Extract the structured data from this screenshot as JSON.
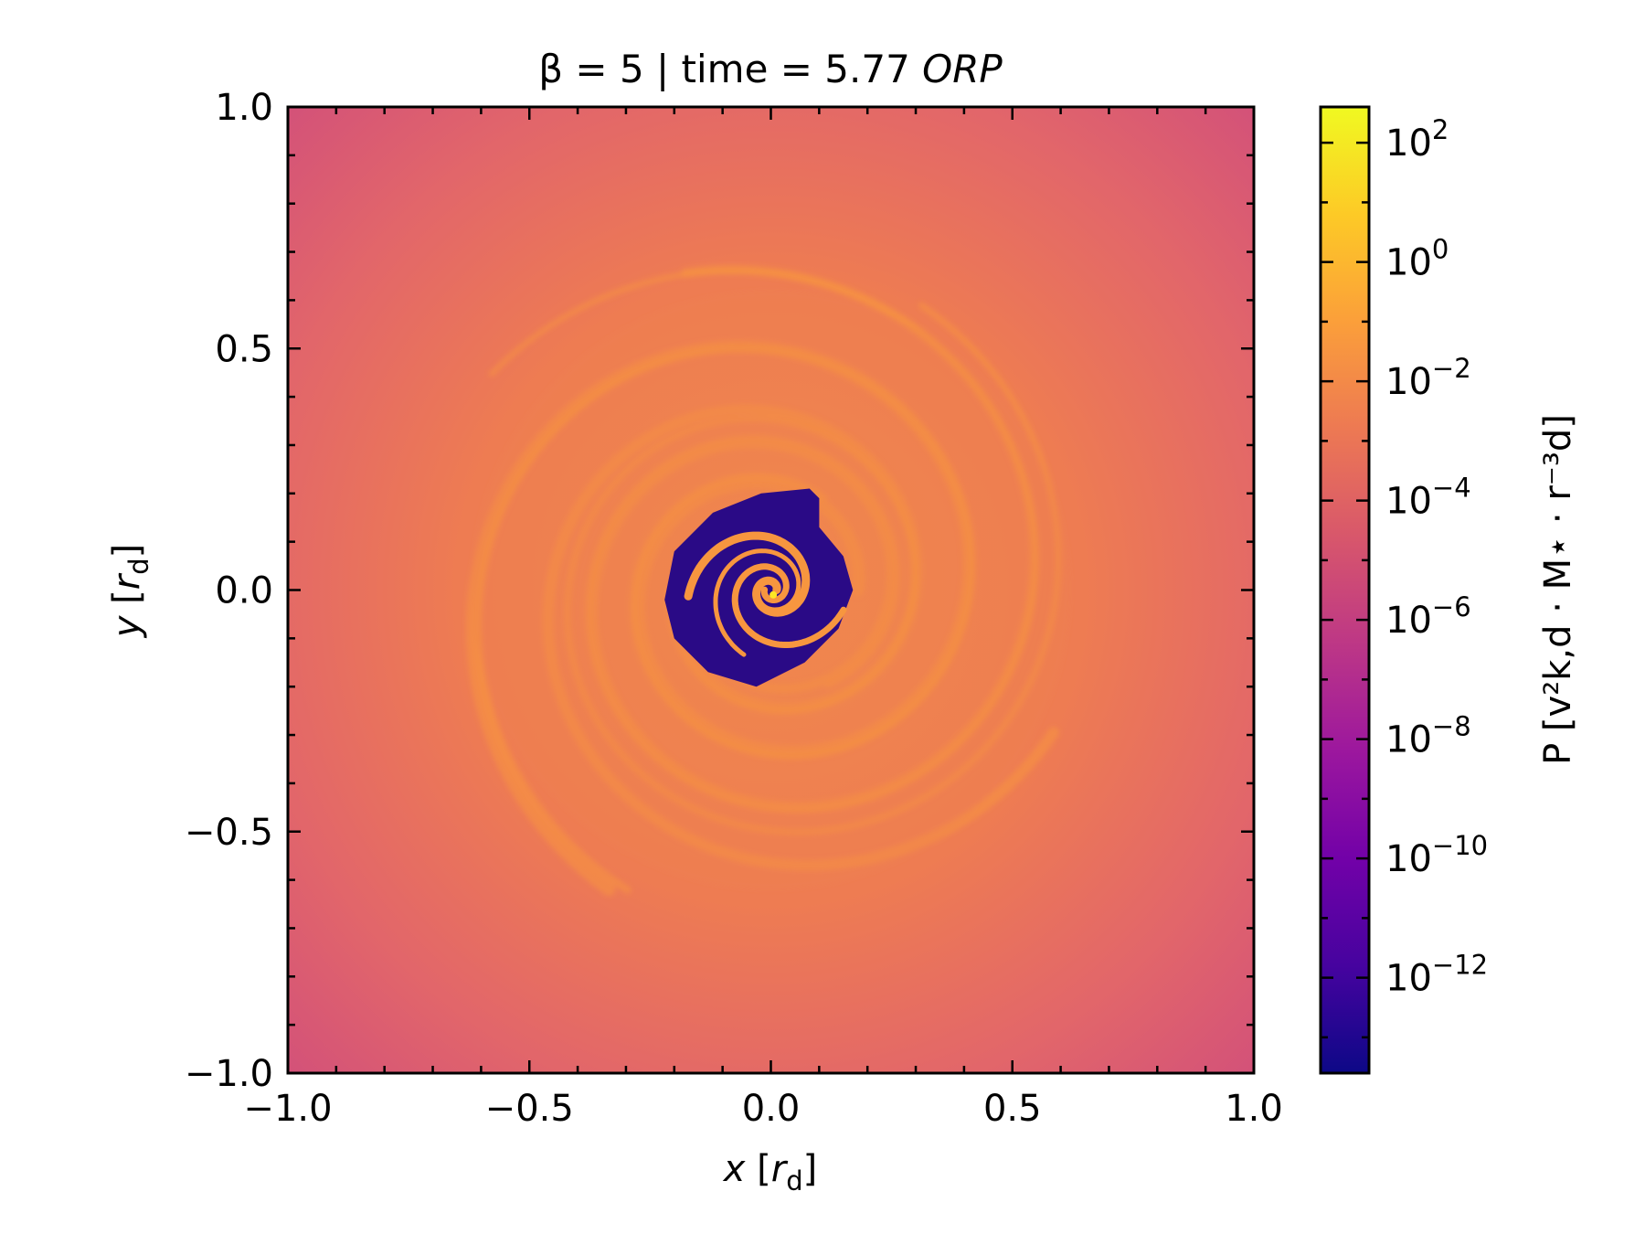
{
  "chart_data": {
    "type": "heatmap",
    "title_prefix": "β = 5 | time = 5.77 ",
    "title_italic": "ORP",
    "xlabel": {
      "var": "x",
      "unit": "r",
      "unit_sub": "d"
    },
    "ylabel": {
      "var": "y",
      "unit": "r",
      "unit_sub": "d"
    },
    "xlim": [
      -1.0,
      1.0
    ],
    "ylim": [
      -1.0,
      1.0
    ],
    "x_ticks": [
      -1.0,
      -0.5,
      0.0,
      0.5,
      1.0
    ],
    "x_tick_labels": [
      "−1.0",
      "−0.5",
      "0.0",
      "0.5",
      "1.0"
    ],
    "y_ticks": [
      1.0,
      0.5,
      0.0,
      -0.5,
      -1.0
    ],
    "y_tick_labels": [
      "1.0",
      "0.5",
      "0.0",
      "−0.5",
      "−1.0"
    ],
    "scale": "log",
    "colormap": "plasma",
    "colormap_stops": [
      "#0d0887",
      "#46039f",
      "#7201a8",
      "#9c179e",
      "#bd3786",
      "#d8576b",
      "#ed7953",
      "#fb9f3a",
      "#fdca26",
      "#f0f921"
    ],
    "colorbar": {
      "range_exp": [
        -13.6,
        2.6
      ],
      "tick_exps": [
        -12,
        -10,
        -8,
        -6,
        -4,
        -2,
        0,
        2
      ],
      "tick_labels": [
        {
          "base": "10",
          "exp": "−12"
        },
        {
          "base": "10",
          "exp": "−10"
        },
        {
          "base": "10",
          "exp": "−8"
        },
        {
          "base": "10",
          "exp": "−6"
        },
        {
          "base": "10",
          "exp": "−4"
        },
        {
          "base": "10",
          "exp": "−2"
        },
        {
          "base": "10",
          "exp": "0"
        },
        {
          "base": "10",
          "exp": "2"
        }
      ],
      "label": "P [v²k,d · M⋆ · r⁻³d]"
    },
    "field_colors": {
      "background": "#e0626a",
      "corner": "#d0507a",
      "disk": "#ef7e4f",
      "arm": "#f7963f",
      "cavity": "#2a0a86",
      "core": "#fde725"
    }
  }
}
